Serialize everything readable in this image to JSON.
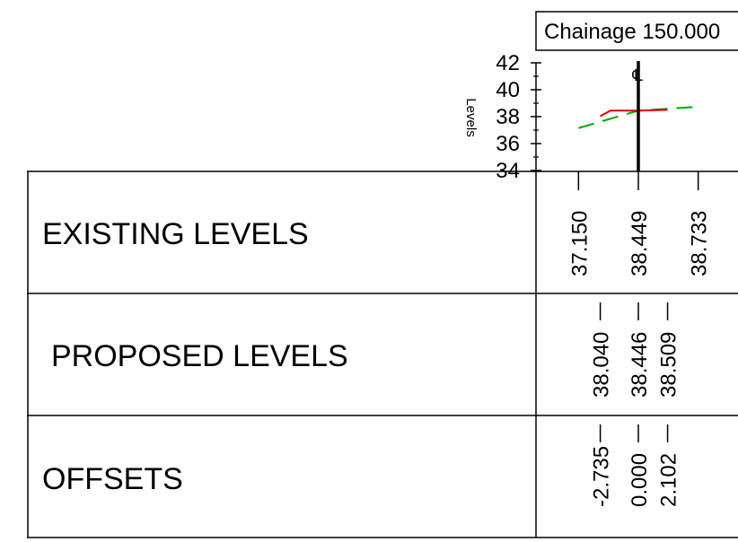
{
  "title": "Chainage 150.000",
  "axis": {
    "label": "Levels",
    "ticks": [
      "42",
      "40",
      "38",
      "36",
      "34"
    ]
  },
  "centerline_symbol": "℄",
  "rows": {
    "existing": "EXISTING LEVELS",
    "proposed": "PROPOSED LEVELS",
    "offsets": "OFFSETS"
  },
  "existing_levels": [
    {
      "offset": -4.3,
      "text": "37.150"
    },
    {
      "offset": 0.0,
      "text": "38.449"
    },
    {
      "offset": 4.3,
      "text": "38.733"
    }
  ],
  "proposed_levels": [
    {
      "offset": -2.735,
      "text": "38.040"
    },
    {
      "offset": 0.0,
      "text": "38.446"
    },
    {
      "offset": 2.102,
      "text": "38.509"
    }
  ],
  "offsets": [
    {
      "offset": -2.735,
      "text": "-2.735"
    },
    {
      "offset": 0.0,
      "text": "0.000"
    },
    {
      "offset": 2.102,
      "text": "2.102"
    }
  ],
  "chart_data": {
    "type": "line",
    "title": "Chainage 150.000",
    "ylabel": "Levels",
    "ylim": [
      34,
      42
    ],
    "yticks": [
      34,
      36,
      38,
      40,
      42
    ],
    "series": [
      {
        "style": "dashed",
        "color": "#00aa00",
        "x": [
          -4.3,
          0.0,
          4.3
        ],
        "y": [
          37.15,
          38.449,
          38.733
        ]
      },
      {
        "style": "solid",
        "color": "#dd0000",
        "x": [
          -2.735,
          -2.0,
          0.0,
          2.102
        ],
        "y": [
          38.04,
          38.446,
          38.446,
          38.509
        ]
      }
    ],
    "centerline_offset": 0.0
  },
  "colors": {
    "existing": "#00aa00",
    "proposed": "#dd0000",
    "line": "#000000"
  }
}
